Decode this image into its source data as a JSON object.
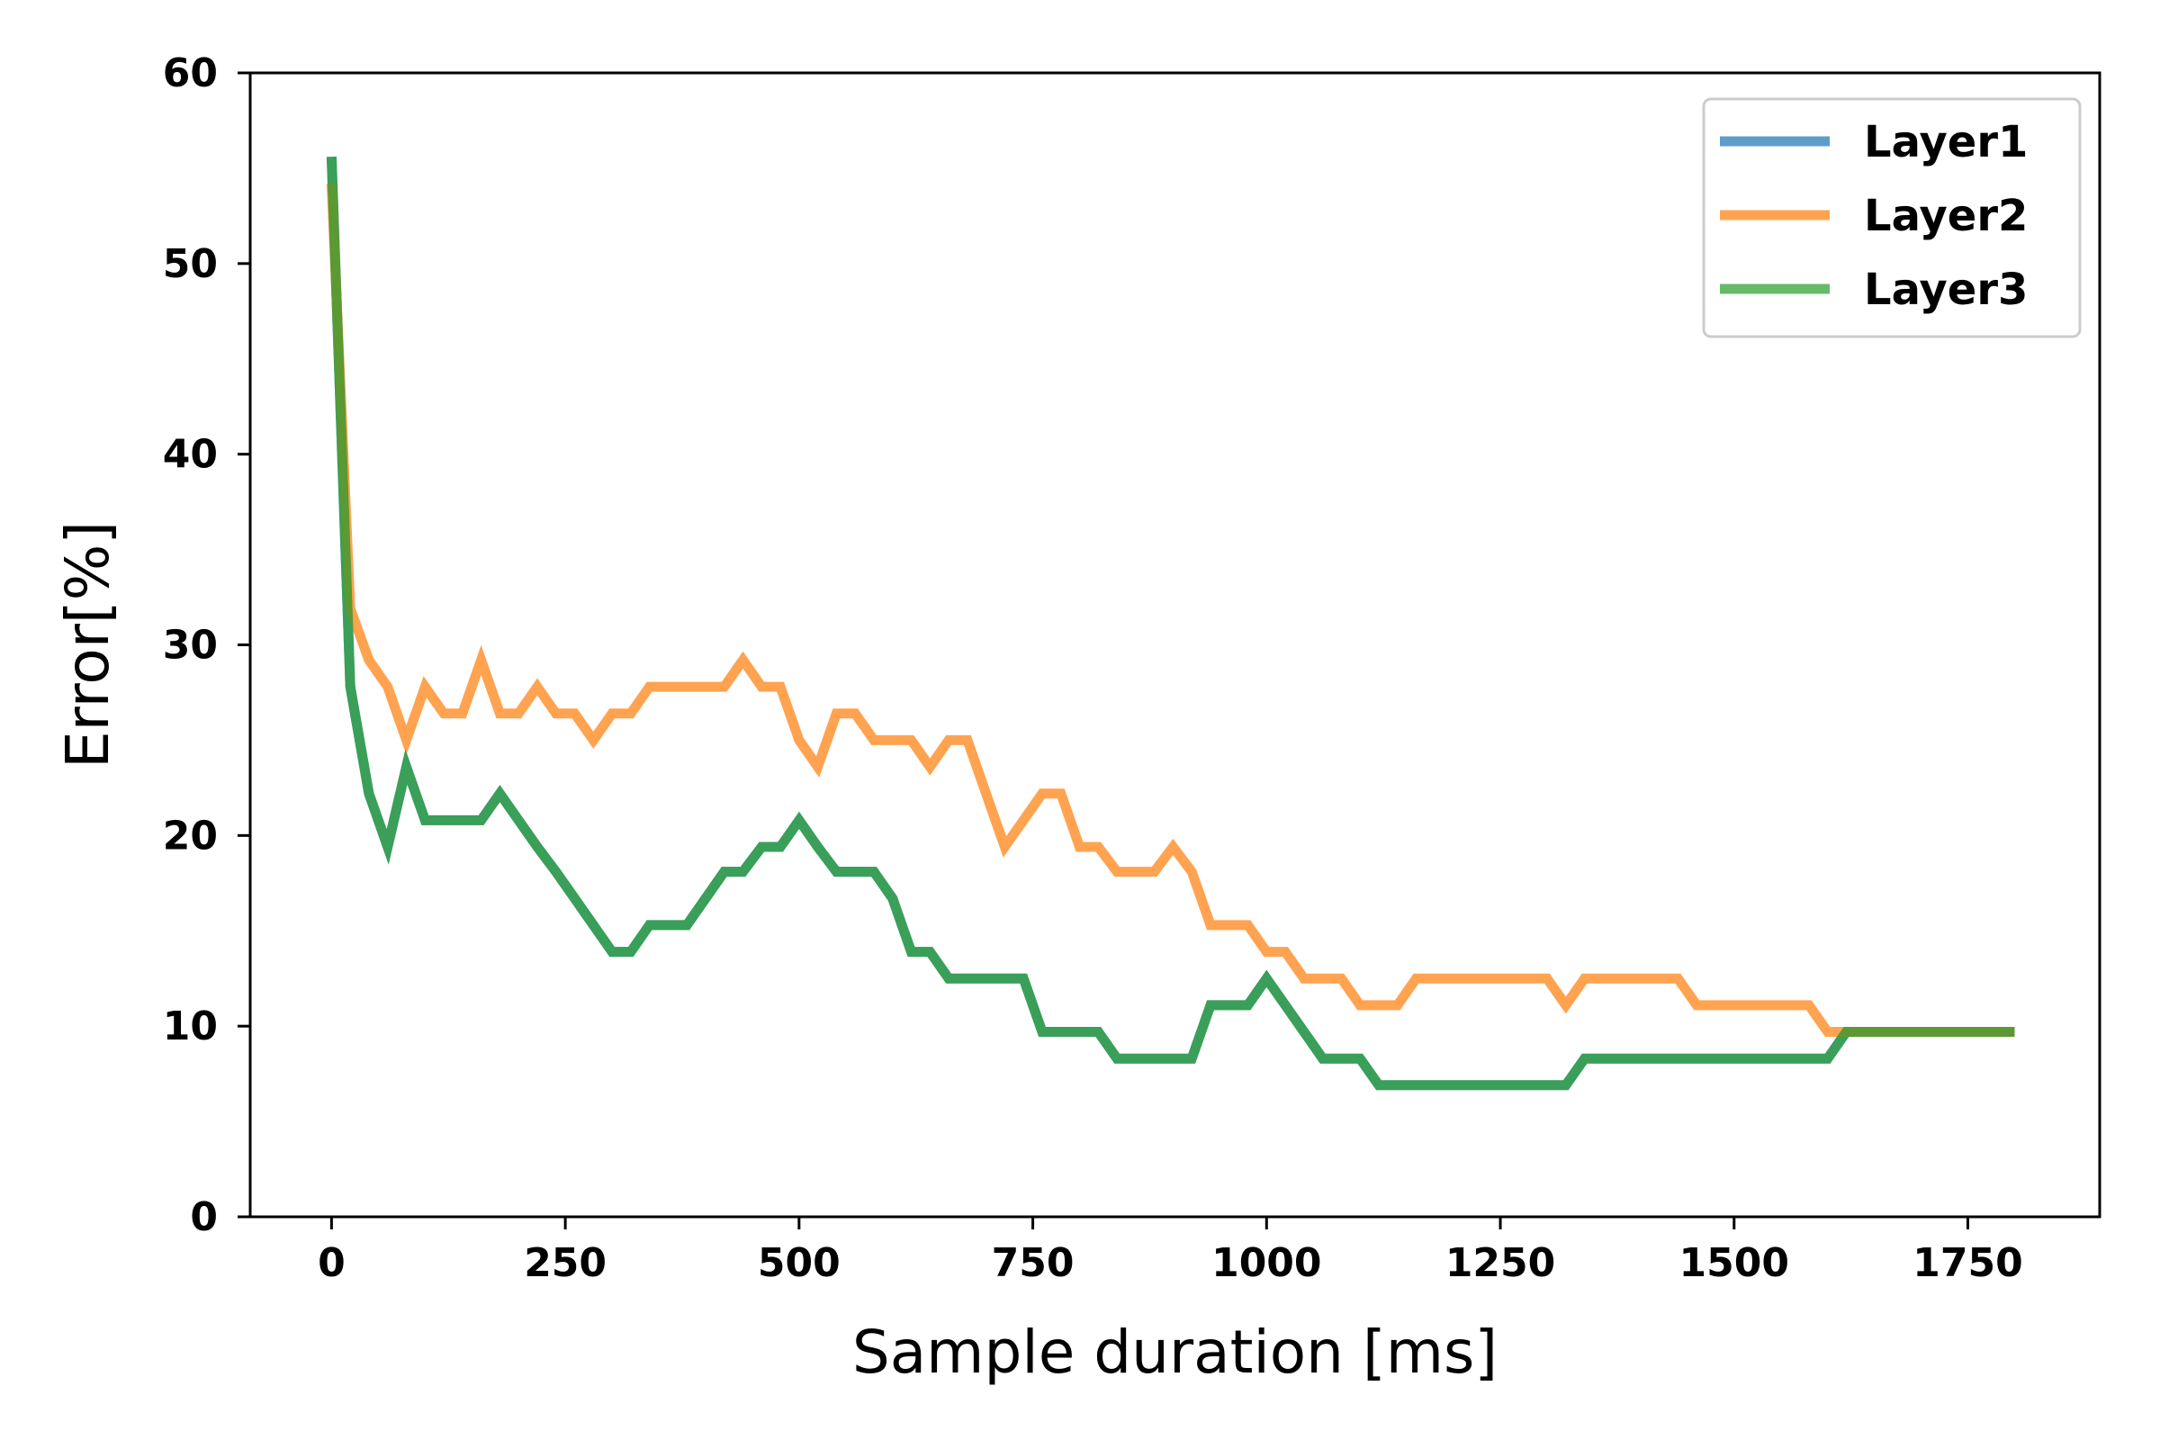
{
  "chart_data": {
    "type": "line",
    "title": "",
    "xlabel": "Sample duration [ms]",
    "ylabel": "Error[%]",
    "xlim": [
      -87,
      1891
    ],
    "ylim": [
      0,
      60
    ],
    "xticks": [
      0,
      250,
      500,
      750,
      1000,
      1250,
      1500,
      1750
    ],
    "xtick_labels": [
      "0",
      "250",
      "500",
      "750",
      "1000",
      "1250",
      "1500",
      "1750"
    ],
    "yticks": [
      0,
      10,
      20,
      30,
      40,
      50,
      60
    ],
    "ytick_labels": [
      "0",
      "10",
      "20",
      "30",
      "40",
      "50",
      "60"
    ],
    "grid": false,
    "legend_position": "top-right",
    "series": [
      {
        "name": "Layer1",
        "color": "#1f77b4",
        "x": [
          0,
          20,
          40,
          60,
          80,
          100,
          120,
          140,
          160,
          180,
          200,
          220,
          240,
          260,
          280,
          300,
          320,
          340,
          360,
          380,
          400,
          420,
          440,
          460,
          480,
          500,
          520,
          540,
          560,
          580,
          600,
          620,
          640,
          660,
          680,
          700,
          720,
          740,
          760,
          780,
          800,
          820,
          840,
          860,
          880,
          900,
          920,
          940,
          960,
          980,
          1000,
          1020,
          1040,
          1060,
          1080,
          1100,
          1120,
          1140,
          1160,
          1180,
          1200,
          1220,
          1240,
          1260,
          1280,
          1300,
          1320,
          1340,
          1360,
          1380,
          1400,
          1420,
          1440,
          1460,
          1480,
          1500,
          1520,
          1540,
          1560,
          1580,
          1600,
          1620,
          1640,
          1660,
          1680,
          1700,
          1720,
          1740,
          1760,
          1780,
          1800
        ],
        "y": [
          55.6,
          27.8,
          22.2,
          19.4,
          23.6,
          20.8,
          20.8,
          20.8,
          20.8,
          22.2,
          20.8,
          19.4,
          18.1,
          16.7,
          15.3,
          13.9,
          13.9,
          15.3,
          15.3,
          15.3,
          16.7,
          18.1,
          18.1,
          19.4,
          19.4,
          20.8,
          19.4,
          18.1,
          18.1,
          18.1,
          16.7,
          13.9,
          13.9,
          12.5,
          12.5,
          12.5,
          12.5,
          12.5,
          9.7,
          9.7,
          9.7,
          9.7,
          8.3,
          8.3,
          8.3,
          8.3,
          8.3,
          11.1,
          11.1,
          11.1,
          12.5,
          11.1,
          9.7,
          8.3,
          8.3,
          8.3,
          6.9,
          6.9,
          6.9,
          6.9,
          6.9,
          6.9,
          6.9,
          6.9,
          6.9,
          6.9,
          6.9,
          8.3,
          8.3,
          8.3,
          8.3,
          8.3,
          8.3,
          8.3,
          8.3,
          8.3,
          8.3,
          8.3,
          8.3,
          8.3,
          8.3,
          9.7,
          9.7,
          9.7,
          9.7,
          9.7,
          9.7,
          9.7,
          9.7,
          9.7,
          9.7
        ]
      },
      {
        "name": "Layer2",
        "color": "#ff7f0e",
        "x": [
          0,
          20,
          40,
          60,
          80,
          100,
          120,
          140,
          160,
          180,
          200,
          220,
          240,
          260,
          280,
          300,
          320,
          340,
          360,
          380,
          400,
          420,
          440,
          460,
          480,
          500,
          520,
          540,
          560,
          580,
          600,
          620,
          640,
          660,
          680,
          700,
          720,
          740,
          760,
          780,
          800,
          820,
          840,
          860,
          880,
          900,
          920,
          940,
          960,
          980,
          1000,
          1020,
          1040,
          1060,
          1080,
          1100,
          1120,
          1140,
          1160,
          1180,
          1200,
          1220,
          1240,
          1260,
          1280,
          1300,
          1320,
          1340,
          1360,
          1380,
          1400,
          1420,
          1440,
          1460,
          1480,
          1500,
          1520,
          1540,
          1560,
          1580,
          1600,
          1620,
          1640,
          1660,
          1680,
          1700,
          1720,
          1740,
          1760,
          1780,
          1800
        ],
        "y": [
          54.2,
          31.9,
          29.2,
          27.8,
          25.0,
          27.8,
          26.4,
          26.4,
          29.2,
          26.4,
          26.4,
          27.8,
          26.4,
          26.4,
          25.0,
          26.4,
          26.4,
          27.8,
          27.8,
          27.8,
          27.8,
          27.8,
          29.2,
          27.8,
          27.8,
          25.0,
          23.6,
          26.4,
          26.4,
          25.0,
          25.0,
          25.0,
          23.6,
          25.0,
          25.0,
          22.2,
          19.4,
          20.8,
          22.2,
          22.2,
          19.4,
          19.4,
          18.1,
          18.1,
          18.1,
          19.4,
          18.1,
          15.3,
          15.3,
          15.3,
          13.9,
          13.9,
          12.5,
          12.5,
          12.5,
          11.1,
          11.1,
          11.1,
          12.5,
          12.5,
          12.5,
          12.5,
          12.5,
          12.5,
          12.5,
          12.5,
          11.1,
          12.5,
          12.5,
          12.5,
          12.5,
          12.5,
          12.5,
          11.1,
          11.1,
          11.1,
          11.1,
          11.1,
          11.1,
          11.1,
          9.7,
          9.7,
          9.7,
          9.7,
          9.7,
          9.7,
          9.7,
          9.7,
          9.7,
          9.7,
          9.7
        ]
      },
      {
        "name": "Layer3",
        "color": "#2ca02c",
        "x": [
          0,
          20,
          40,
          60,
          80,
          100,
          120,
          140,
          160,
          180,
          200,
          220,
          240,
          260,
          280,
          300,
          320,
          340,
          360,
          380,
          400,
          420,
          440,
          460,
          480,
          500,
          520,
          540,
          560,
          580,
          600,
          620,
          640,
          660,
          680,
          700,
          720,
          740,
          760,
          780,
          800,
          820,
          840,
          860,
          880,
          900,
          920,
          940,
          960,
          980,
          1000,
          1020,
          1040,
          1060,
          1080,
          1100,
          1120,
          1140,
          1160,
          1180,
          1200,
          1220,
          1240,
          1260,
          1280,
          1300,
          1320,
          1340,
          1360,
          1380,
          1400,
          1420,
          1440,
          1460,
          1480,
          1500,
          1520,
          1540,
          1560,
          1580,
          1600,
          1620,
          1640,
          1660,
          1680,
          1700,
          1720,
          1740,
          1760,
          1780,
          1800
        ],
        "y": [
          55.6,
          27.8,
          22.2,
          19.4,
          23.6,
          20.8,
          20.8,
          20.8,
          20.8,
          22.2,
          20.8,
          19.4,
          18.1,
          16.7,
          15.3,
          13.9,
          13.9,
          15.3,
          15.3,
          15.3,
          16.7,
          18.1,
          18.1,
          19.4,
          19.4,
          20.8,
          19.4,
          18.1,
          18.1,
          18.1,
          16.7,
          13.9,
          13.9,
          12.5,
          12.5,
          12.5,
          12.5,
          12.5,
          9.7,
          9.7,
          9.7,
          9.7,
          8.3,
          8.3,
          8.3,
          8.3,
          8.3,
          11.1,
          11.1,
          11.1,
          12.5,
          11.1,
          9.7,
          8.3,
          8.3,
          8.3,
          6.9,
          6.9,
          6.9,
          6.9,
          6.9,
          6.9,
          6.9,
          6.9,
          6.9,
          6.9,
          6.9,
          8.3,
          8.3,
          8.3,
          8.3,
          8.3,
          8.3,
          8.3,
          8.3,
          8.3,
          8.3,
          8.3,
          8.3,
          8.3,
          8.3,
          9.7,
          9.7,
          9.7,
          9.7,
          9.7,
          9.7,
          9.7,
          9.7,
          9.7,
          9.7
        ]
      }
    ]
  }
}
